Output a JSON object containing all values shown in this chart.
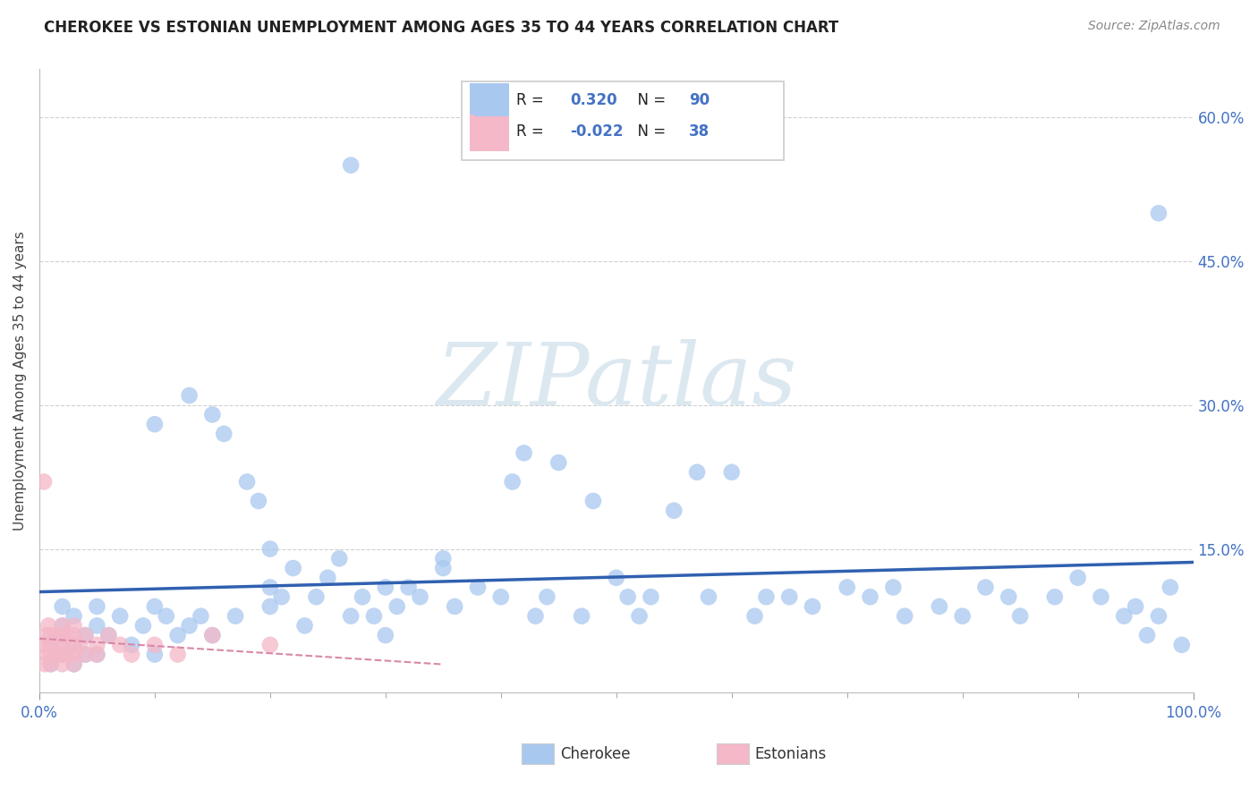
{
  "title": "CHEROKEE VS ESTONIAN UNEMPLOYMENT AMONG AGES 35 TO 44 YEARS CORRELATION CHART",
  "source": "Source: ZipAtlas.com",
  "ylabel": "Unemployment Among Ages 35 to 44 years",
  "xlim": [
    0,
    1.0
  ],
  "ylim": [
    0,
    0.65
  ],
  "ytick_vals": [
    0.0,
    0.15,
    0.3,
    0.45,
    0.6
  ],
  "ytick_labels": [
    "",
    "15.0%",
    "30.0%",
    "45.0%",
    "60.0%"
  ],
  "xtick_vals": [
    0.0,
    1.0
  ],
  "xtick_labels": [
    "0.0%",
    "100.0%"
  ],
  "cherokee_color": "#a8c8f0",
  "estonian_color": "#f4b8c8",
  "cherokee_line_color": "#3060b0",
  "estonian_line_color": "#d888a8",
  "background_color": "#ffffff",
  "grid_color": "#d0d0d0",
  "watermark_text": "ZIPatlas",
  "watermark_color": "#dce8f0",
  "cherokee_R": "0.320",
  "cherokee_N": "90",
  "estonian_R": "-0.022",
  "estonian_N": "38",
  "title_fontsize": 12,
  "tick_fontsize": 12,
  "ylabel_fontsize": 11,
  "legend_fontsize": 12
}
